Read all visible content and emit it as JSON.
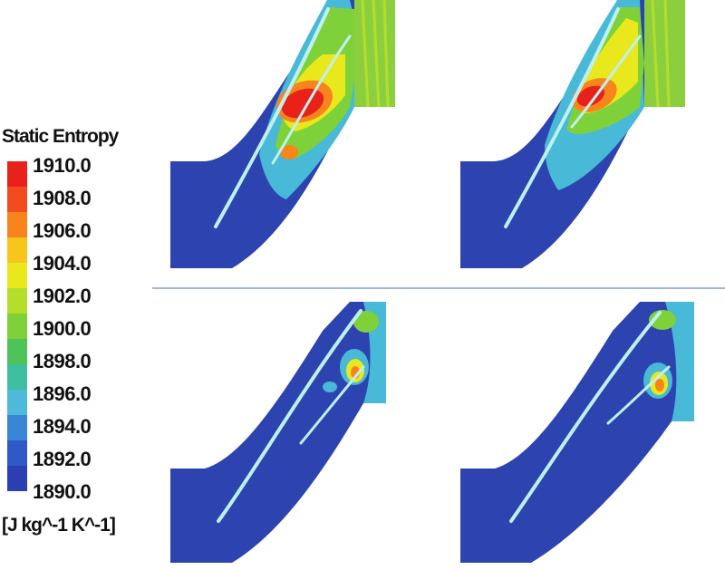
{
  "legend": {
    "title": "Static Entropy",
    "units": "[J kg^-1 K^-1]",
    "ticks": [
      "1910.0",
      "1908.0",
      "1906.0",
      "1904.0",
      "1902.0",
      "1900.0",
      "1898.0",
      "1896.0",
      "1894.0",
      "1892.0",
      "1890.0"
    ],
    "range": [
      1890.0,
      1910.0
    ],
    "colors": [
      "#e8221a",
      "#f24c1e",
      "#f7851c",
      "#f8c51c",
      "#e8e81c",
      "#b5de2c",
      "#7fd13a",
      "#4ec35a",
      "#3fbf9f",
      "#4fb9d9",
      "#3a86d6",
      "#2f59c4",
      "#2b3fb2"
    ]
  },
  "panels": [
    {
      "id": "top-left"
    },
    {
      "id": "top-right"
    },
    {
      "id": "bottom-left"
    },
    {
      "id": "bottom-right"
    }
  ]
}
